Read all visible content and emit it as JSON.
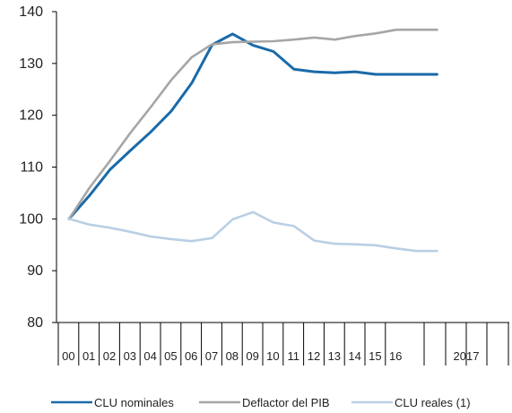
{
  "chart_data": {
    "type": "line",
    "title": "",
    "xlabel": "",
    "ylabel": "",
    "ylim": [
      80,
      140
    ],
    "yticks": [
      80,
      90,
      100,
      110,
      120,
      130,
      140
    ],
    "x_tick_labels": [
      "00",
      "01",
      "02",
      "03",
      "04",
      "05",
      "06",
      "07",
      "08",
      "09",
      "10",
      "11",
      "12",
      "13",
      "14",
      "15",
      "16",
      "2017"
    ],
    "x": [
      "2000",
      "2001",
      "2002",
      "2003",
      "2004",
      "2005",
      "2006",
      "2007",
      "2008",
      "2009",
      "2010",
      "2011",
      "2012",
      "2013",
      "2014",
      "2015",
      "2016",
      "2017 T1",
      "2017 T2"
    ],
    "grid": false,
    "legend_position": "bottom",
    "series": [
      {
        "name": "CLU nominales",
        "color": "#1a6aa9",
        "values": [
          100,
          104.5,
          109.5,
          113.2,
          116.8,
          120.8,
          126.2,
          133.6,
          135.7,
          133.5,
          132.3,
          128.9,
          128.4,
          128.2,
          128.4,
          127.9,
          127.9,
          127.9,
          127.9
        ]
      },
      {
        "name": "Deflactor del PIB",
        "color": "#a6a6a6",
        "values": [
          100,
          106.0,
          111.2,
          116.6,
          121.6,
          126.8,
          131.2,
          133.7,
          134.1,
          134.2,
          134.3,
          134.6,
          135.0,
          134.6,
          135.3,
          135.8,
          136.5,
          136.5,
          136.5
        ]
      },
      {
        "name": "CLU reales  (1)",
        "color": "#b9cfe4",
        "values": [
          100,
          98.9,
          98.3,
          97.5,
          96.6,
          96.1,
          95.7,
          96.3,
          99.9,
          101.3,
          99.3,
          98.6,
          95.8,
          95.2,
          95.1,
          94.9,
          94.3,
          93.8,
          93.8
        ]
      }
    ]
  }
}
